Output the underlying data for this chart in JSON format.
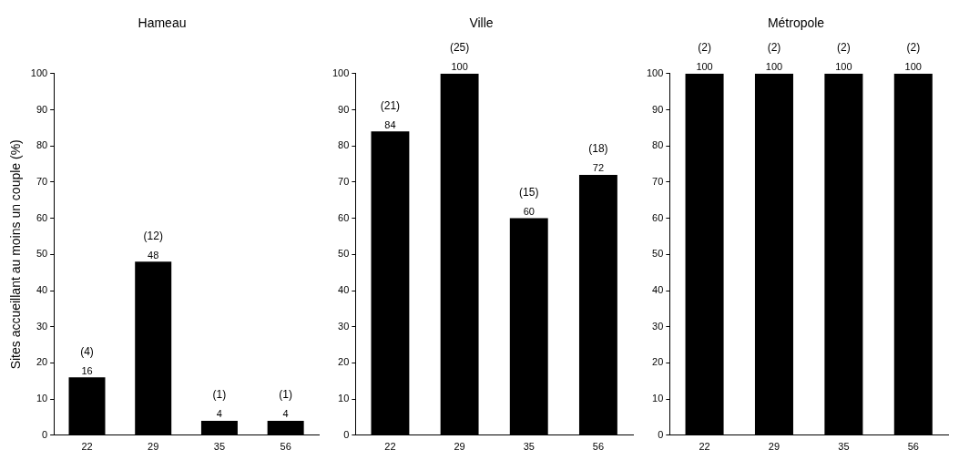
{
  "chart_data": [
    {
      "type": "bar",
      "title": "Hameau",
      "ylabel": "Sites accueillant au moins un couple (%)",
      "categories": [
        "22",
        "29",
        "35",
        "56"
      ],
      "values": [
        16,
        48,
        4,
        4
      ],
      "color": "#000000",
      "ylim": [
        0,
        100
      ],
      "yticks": [
        0,
        10,
        20,
        30,
        40,
        50,
        60,
        70,
        80,
        90,
        100
      ],
      "grid": false,
      "legend": false,
      "data_labels": true,
      "annotations": [
        {
          "text": "(4)",
          "x": "22",
          "y": 16
        },
        {
          "text": "(12)",
          "x": "29",
          "y": 48
        },
        {
          "text": "(1)",
          "x": "35",
          "y": 4
        },
        {
          "text": "(1)",
          "x": "56",
          "y": 4
        }
      ]
    },
    {
      "type": "bar",
      "title": "Ville",
      "categories": [
        "22",
        "29",
        "35",
        "56"
      ],
      "values": [
        84,
        100,
        60,
        72
      ],
      "color": "#000000",
      "ylim": [
        0,
        100
      ],
      "yticks": [
        0,
        10,
        20,
        30,
        40,
        50,
        60,
        70,
        80,
        90,
        100
      ],
      "grid": false,
      "legend": false,
      "data_labels": true,
      "annotations": [
        {
          "text": "(21)",
          "x": "22",
          "y": 84
        },
        {
          "text": "(25)",
          "x": "29",
          "y": 100
        },
        {
          "text": "(15)",
          "x": "35",
          "y": 60
        },
        {
          "text": "(18)",
          "x": "56",
          "y": 72
        }
      ]
    },
    {
      "type": "bar",
      "title": "Métropole",
      "categories": [
        "22",
        "29",
        "35",
        "56"
      ],
      "values": [
        100,
        100,
        100,
        100
      ],
      "color": "#000000",
      "ylim": [
        0,
        100
      ],
      "yticks": [
        0,
        10,
        20,
        30,
        40,
        50,
        60,
        70,
        80,
        90,
        100
      ],
      "grid": false,
      "legend": false,
      "data_labels": true,
      "annotations": [
        {
          "text": "(2)",
          "x": "22",
          "y": 100
        },
        {
          "text": "(2)",
          "x": "29",
          "y": 100
        },
        {
          "text": "(2)",
          "x": "35",
          "y": 100
        },
        {
          "text": "(2)",
          "x": "56",
          "y": 100
        }
      ]
    }
  ]
}
